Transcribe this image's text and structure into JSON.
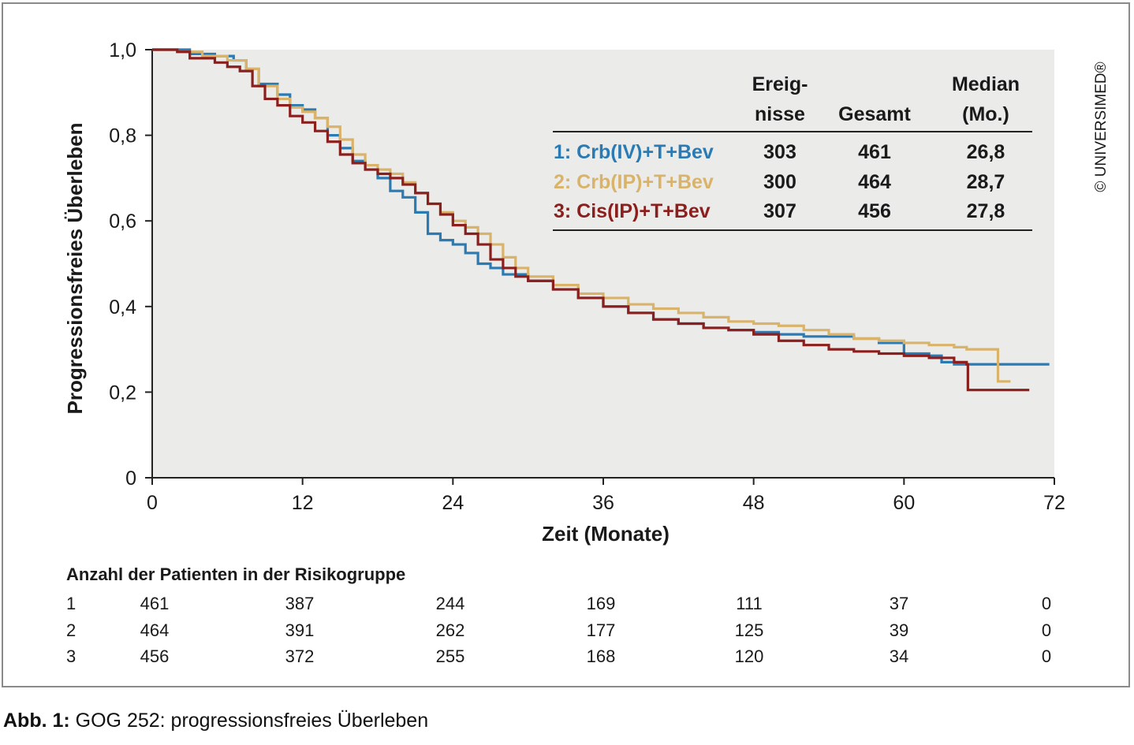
{
  "chart_data": {
    "type": "line",
    "ylabel": "Progressionsfreies Überleben",
    "xlabel": "Zeit (Monate)",
    "xlim": [
      0,
      72
    ],
    "ylim": [
      0,
      1.0
    ],
    "x_ticks": [
      0,
      12,
      24,
      36,
      48,
      60,
      72
    ],
    "x_tick_labels": [
      "0",
      "12",
      "24",
      "36",
      "48",
      "60",
      "72"
    ],
    "y_ticks": [
      0,
      0.2,
      0.4,
      0.6,
      0.8,
      1.0
    ],
    "y_tick_labels": [
      "0",
      "0,2",
      "0,4",
      "0,6",
      "0,8",
      "1,0"
    ],
    "grid": false,
    "plot_background": "#ebebea",
    "series": [
      {
        "name": "1: Crb(IV)+T+Bev",
        "color": "#2a7ab3",
        "points": [
          [
            0,
            1.0
          ],
          [
            3,
            0.99
          ],
          [
            5,
            0.985
          ],
          [
            6.5,
            0.975
          ],
          [
            7.5,
            0.955
          ],
          [
            8.5,
            0.92
          ],
          [
            10,
            0.895
          ],
          [
            11,
            0.87
          ],
          [
            12,
            0.86
          ],
          [
            13,
            0.84
          ],
          [
            14,
            0.8
          ],
          [
            15,
            0.77
          ],
          [
            16,
            0.74
          ],
          [
            17,
            0.72
          ],
          [
            18,
            0.7
          ],
          [
            19,
            0.67
          ],
          [
            20,
            0.655
          ],
          [
            21,
            0.62
          ],
          [
            22,
            0.57
          ],
          [
            23,
            0.555
          ],
          [
            24,
            0.545
          ],
          [
            25,
            0.525
          ],
          [
            26,
            0.5
          ],
          [
            27,
            0.49
          ],
          [
            28,
            0.475
          ],
          [
            30,
            0.46
          ],
          [
            32,
            0.44
          ],
          [
            34,
            0.42
          ],
          [
            36,
            0.4
          ],
          [
            38,
            0.385
          ],
          [
            40,
            0.37
          ],
          [
            42,
            0.36
          ],
          [
            44,
            0.35
          ],
          [
            46,
            0.345
          ],
          [
            48,
            0.34
          ],
          [
            50,
            0.335
          ],
          [
            52,
            0.33
          ],
          [
            54,
            0.33
          ],
          [
            56,
            0.325
          ],
          [
            58,
            0.315
          ],
          [
            60,
            0.29
          ],
          [
            62,
            0.285
          ],
          [
            63,
            0.27
          ],
          [
            64,
            0.265
          ],
          [
            68,
            0.265
          ],
          [
            71.5,
            0.268
          ]
        ]
      },
      {
        "name": "2: Crb(IP)+T+Bev",
        "color": "#d9b36a",
        "points": [
          [
            0,
            1.0
          ],
          [
            2,
            0.995
          ],
          [
            4,
            0.985
          ],
          [
            6,
            0.975
          ],
          [
            7.5,
            0.955
          ],
          [
            8.5,
            0.915
          ],
          [
            10,
            0.885
          ],
          [
            11,
            0.865
          ],
          [
            12,
            0.855
          ],
          [
            13,
            0.84
          ],
          [
            14,
            0.82
          ],
          [
            15,
            0.79
          ],
          [
            16,
            0.755
          ],
          [
            17,
            0.73
          ],
          [
            18,
            0.72
          ],
          [
            19,
            0.71
          ],
          [
            20,
            0.69
          ],
          [
            21,
            0.665
          ],
          [
            22,
            0.64
          ],
          [
            23,
            0.62
          ],
          [
            24,
            0.6
          ],
          [
            25,
            0.585
          ],
          [
            26,
            0.57
          ],
          [
            27,
            0.545
          ],
          [
            28,
            0.515
          ],
          [
            29,
            0.49
          ],
          [
            30,
            0.47
          ],
          [
            32,
            0.45
          ],
          [
            34,
            0.43
          ],
          [
            36,
            0.42
          ],
          [
            38,
            0.405
          ],
          [
            40,
            0.395
          ],
          [
            42,
            0.385
          ],
          [
            44,
            0.375
          ],
          [
            46,
            0.365
          ],
          [
            48,
            0.36
          ],
          [
            50,
            0.355
          ],
          [
            52,
            0.345
          ],
          [
            54,
            0.335
          ],
          [
            56,
            0.325
          ],
          [
            58,
            0.32
          ],
          [
            60,
            0.315
          ],
          [
            62,
            0.31
          ],
          [
            64,
            0.305
          ],
          [
            65,
            0.3
          ],
          [
            67,
            0.3
          ],
          [
            67.5,
            0.225
          ],
          [
            68.5,
            0.225
          ]
        ]
      },
      {
        "name": "3: Cis(IP)+T+Bev",
        "color": "#8b1f1d",
        "points": [
          [
            0,
            1.0
          ],
          [
            2,
            0.995
          ],
          [
            3,
            0.98
          ],
          [
            5,
            0.97
          ],
          [
            6,
            0.96
          ],
          [
            7,
            0.95
          ],
          [
            8,
            0.915
          ],
          [
            9,
            0.885
          ],
          [
            10,
            0.87
          ],
          [
            11,
            0.845
          ],
          [
            12,
            0.83
          ],
          [
            13,
            0.81
          ],
          [
            14,
            0.785
          ],
          [
            15,
            0.755
          ],
          [
            16,
            0.735
          ],
          [
            17,
            0.72
          ],
          [
            18,
            0.71
          ],
          [
            19,
            0.7
          ],
          [
            20,
            0.685
          ],
          [
            21,
            0.665
          ],
          [
            22,
            0.64
          ],
          [
            23,
            0.615
          ],
          [
            24,
            0.59
          ],
          [
            25,
            0.57
          ],
          [
            26,
            0.545
          ],
          [
            27,
            0.51
          ],
          [
            28,
            0.49
          ],
          [
            29,
            0.47
          ],
          [
            30,
            0.46
          ],
          [
            32,
            0.44
          ],
          [
            34,
            0.42
          ],
          [
            36,
            0.4
          ],
          [
            38,
            0.385
          ],
          [
            40,
            0.37
          ],
          [
            42,
            0.36
          ],
          [
            44,
            0.35
          ],
          [
            46,
            0.345
          ],
          [
            48,
            0.335
          ],
          [
            50,
            0.32
          ],
          [
            52,
            0.31
          ],
          [
            54,
            0.3
          ],
          [
            56,
            0.295
          ],
          [
            58,
            0.29
          ],
          [
            60,
            0.285
          ],
          [
            62,
            0.28
          ],
          [
            64,
            0.27
          ],
          [
            65,
            0.265
          ],
          [
            65.1,
            0.205
          ],
          [
            68,
            0.205
          ],
          [
            70,
            0.205
          ]
        ]
      }
    ],
    "legend_table": {
      "headers": [
        {
          "line1": "Ereig-",
          "line2": "nisse"
        },
        {
          "line1": "",
          "line2": "Gesamt"
        },
        {
          "line1": "Median",
          "line2": "(Mo.)"
        }
      ],
      "rows": [
        {
          "label": "1: Crb(IV)+T+Bev",
          "events": "303",
          "total": "461",
          "median": "26,8"
        },
        {
          "label": "2: Crb(IP)+T+Bev",
          "events": "300",
          "total": "464",
          "median": "28,7"
        },
        {
          "label": "3: Cis(IP)+T+Bev",
          "events": "307",
          "total": "456",
          "median": "27,8"
        }
      ]
    },
    "risk_table": {
      "title": "Anzahl der Patienten in der Risikogruppe",
      "rows": [
        {
          "group": "1",
          "values": [
            "461",
            "387",
            "244",
            "169",
            "111",
            "37",
            "0"
          ]
        },
        {
          "group": "2",
          "values": [
            "464",
            "391",
            "262",
            "177",
            "125",
            "39",
            "0"
          ]
        },
        {
          "group": "3",
          "values": [
            "456",
            "372",
            "255",
            "168",
            "120",
            "34",
            "0"
          ]
        }
      ]
    },
    "copyright": "© UNIVERSIMED®"
  },
  "caption": {
    "prefix": "Abb. 1:",
    "text": " GOG 252: progressionsfreies Überleben"
  }
}
